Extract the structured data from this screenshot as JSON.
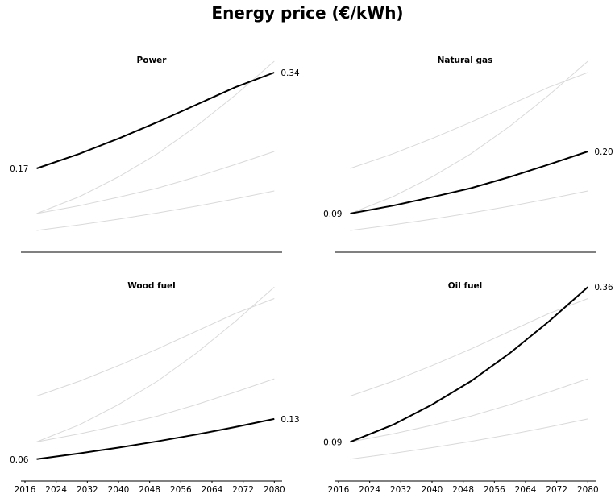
{
  "page": {
    "title": "Energy price (€/kWh)"
  },
  "chart_data": {
    "type": "line",
    "title": "Energy price (€/kWh)",
    "xlabel": "",
    "ylabel": "",
    "xlim": [
      2016,
      2082
    ],
    "ylim": [
      0.04,
      0.38
    ],
    "x_ticks": [
      2016,
      2024,
      2032,
      2040,
      2048,
      2056,
      2064,
      2072,
      2080
    ],
    "x_tick_labels": [
      "2016",
      "2024",
      "2032",
      "2040",
      "2048",
      "2056",
      "2064",
      "2072",
      "2080"
    ],
    "grid": false,
    "layout": "2x2 small multiples, shared axes",
    "highlight_color": "#000000",
    "background_color": "#d9d9d9",
    "x": [
      2019,
      2030,
      2040,
      2050,
      2060,
      2070,
      2080
    ],
    "series": [
      {
        "name": "Power",
        "values": [
          0.17,
          0.196,
          0.223,
          0.252,
          0.283,
          0.314,
          0.34
        ],
        "start_label": "0.17",
        "end_label": "0.34"
      },
      {
        "name": "Natural gas",
        "values": [
          0.09,
          0.104,
          0.119,
          0.135,
          0.155,
          0.177,
          0.2
        ],
        "start_label": "0.09",
        "end_label": "0.20"
      },
      {
        "name": "Wood fuel",
        "values": [
          0.06,
          0.07,
          0.08,
          0.091,
          0.103,
          0.116,
          0.13
        ],
        "start_label": "0.06",
        "end_label": "0.13"
      },
      {
        "name": "Oil fuel",
        "values": [
          0.09,
          0.12,
          0.155,
          0.196,
          0.245,
          0.3,
          0.36
        ],
        "start_label": "0.09",
        "end_label": "0.36"
      }
    ]
  }
}
